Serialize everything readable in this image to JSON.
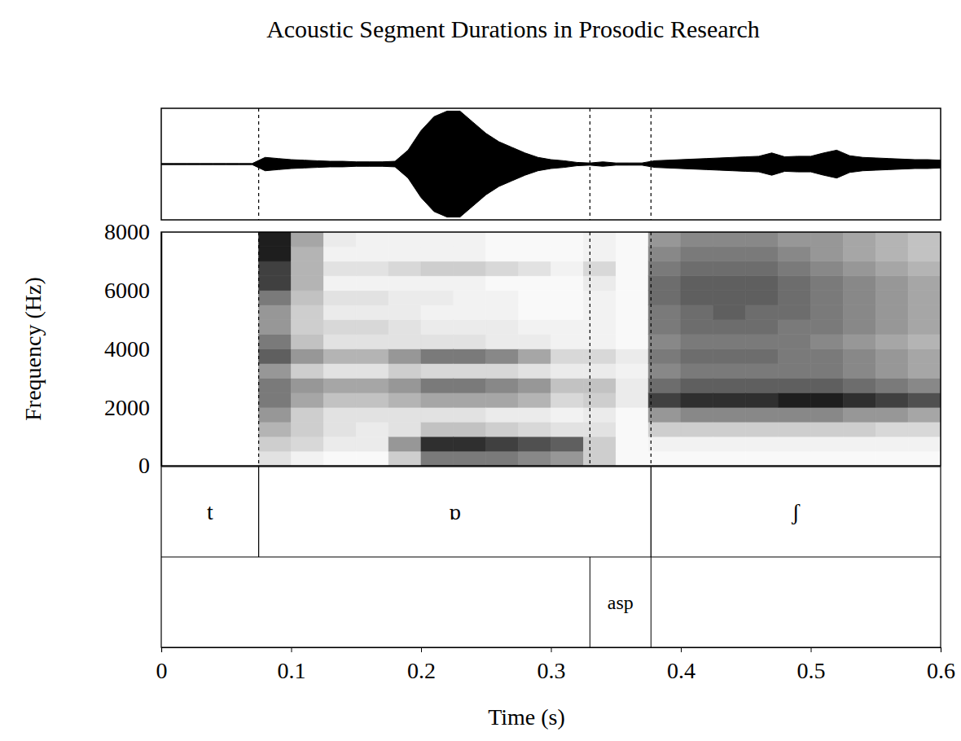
{
  "title": "Acoustic Segment Durations in Prosodic Research",
  "chart_data": [
    {
      "type": "area",
      "xlim": [
        0,
        0.6
      ],
      "ylim": [
        -1,
        1
      ],
      "tick_labels": false,
      "color": "#000000",
      "x": [
        0,
        0.01,
        0.02,
        0.03,
        0.04,
        0.05,
        0.06,
        0.07,
        0.08,
        0.09,
        0.1,
        0.11,
        0.12,
        0.13,
        0.14,
        0.15,
        0.16,
        0.17,
        0.18,
        0.19,
        0.2,
        0.21,
        0.22,
        0.23,
        0.24,
        0.25,
        0.26,
        0.27,
        0.28,
        0.29,
        0.3,
        0.31,
        0.32,
        0.33,
        0.34,
        0.35,
        0.36,
        0.37,
        0.38,
        0.39,
        0.4,
        0.41,
        0.42,
        0.43,
        0.44,
        0.45,
        0.46,
        0.47,
        0.48,
        0.49,
        0.5,
        0.51,
        0.52,
        0.53,
        0.54,
        0.55,
        0.56,
        0.57,
        0.58,
        0.59,
        0.6
      ],
      "values": [
        0.01,
        0.01,
        0.01,
        0.01,
        0.01,
        0.01,
        0.01,
        0.01,
        0.12,
        0.1,
        0.08,
        0.07,
        0.06,
        0.05,
        0.05,
        0.04,
        0.04,
        0.04,
        0.05,
        0.25,
        0.6,
        0.85,
        0.95,
        0.95,
        0.75,
        0.55,
        0.4,
        0.3,
        0.2,
        0.12,
        0.08,
        0.06,
        0.03,
        0.02,
        0.04,
        0.02,
        0.02,
        0.02,
        0.06,
        0.07,
        0.08,
        0.09,
        0.1,
        0.11,
        0.12,
        0.13,
        0.14,
        0.2,
        0.13,
        0.14,
        0.14,
        0.2,
        0.25,
        0.15,
        0.12,
        0.11,
        0.1,
        0.09,
        0.08,
        0.08,
        0.07
      ]
    },
    {
      "type": "heatmap",
      "ylabel": "Frequency (Hz)",
      "xlim": [
        0,
        0.6
      ],
      "ylim": [
        0,
        8000
      ],
      "yticks": [
        0,
        2000,
        4000,
        6000,
        8000
      ],
      "zlim": [
        0,
        1
      ],
      "x_bins": [
        0,
        0.025,
        0.05,
        0.075,
        0.1,
        0.125,
        0.15,
        0.175,
        0.2,
        0.225,
        0.25,
        0.275,
        0.3,
        0.325,
        0.35,
        0.375,
        0.4,
        0.425,
        0.45,
        0.475,
        0.5,
        0.525,
        0.55,
        0.575,
        0.6
      ],
      "y_bins": [
        0,
        500,
        1000,
        1500,
        2000,
        2500,
        3000,
        3500,
        4000,
        4500,
        5000,
        5500,
        6000,
        6500,
        7000,
        7500,
        8000
      ],
      "z": [
        [
          0,
          0,
          0,
          0,
          0,
          0,
          0,
          0,
          0,
          0,
          0,
          0,
          0,
          0,
          0,
          0
        ],
        [
          0,
          0,
          0,
          0,
          0,
          0,
          0,
          0,
          0,
          0,
          0,
          0,
          0,
          0,
          0,
          0
        ],
        [
          0,
          0,
          0,
          0,
          0,
          0,
          0,
          0,
          0,
          0,
          0,
          0,
          0,
          0,
          0,
          0
        ],
        [
          0.2,
          0.3,
          0.4,
          0.5,
          0.6,
          0.6,
          0.5,
          0.7,
          0.6,
          0.5,
          0.5,
          0.6,
          0.8,
          0.8,
          0.9,
          0.9
        ],
        [
          0.1,
          0.25,
          0.3,
          0.3,
          0.45,
          0.5,
          0.3,
          0.5,
          0.35,
          0.3,
          0.3,
          0.35,
          0.4,
          0.4,
          0.4,
          0.45
        ],
        [
          0.05,
          0.15,
          0.2,
          0.2,
          0.35,
          0.45,
          0.2,
          0.4,
          0.2,
          0.25,
          0.15,
          0.2,
          0.1,
          0.2,
          0.1,
          0.15
        ],
        [
          0.05,
          0.15,
          0.15,
          0.2,
          0.35,
          0.45,
          0.2,
          0.4,
          0.2,
          0.25,
          0.15,
          0.2,
          0.1,
          0.2,
          0.1,
          0.1
        ],
        [
          0.3,
          0.5,
          0.2,
          0.2,
          0.4,
          0.5,
          0.3,
          0.5,
          0.2,
          0.2,
          0.15,
          0.15,
          0.1,
          0.25,
          0.1,
          0.1
        ],
        [
          0.6,
          0.85,
          0.35,
          0.2,
          0.45,
          0.6,
          0.25,
          0.6,
          0.2,
          0.15,
          0.1,
          0.15,
          0.1,
          0.3,
          0.1,
          0.1
        ],
        [
          0.6,
          0.85,
          0.35,
          0.2,
          0.45,
          0.6,
          0.25,
          0.6,
          0.2,
          0.15,
          0.1,
          0.1,
          0.1,
          0.3,
          0.1,
          0.1
        ],
        [
          0.6,
          0.8,
          0.3,
          0.15,
          0.45,
          0.55,
          0.25,
          0.55,
          0.15,
          0.15,
          0.1,
          0.1,
          0.05,
          0.25,
          0.05,
          0.05
        ],
        [
          0.55,
          0.75,
          0.25,
          0.15,
          0.4,
          0.5,
          0.2,
          0.45,
          0.15,
          0.1,
          0.05,
          0.05,
          0.05,
          0.2,
          0.05,
          0.05
        ],
        [
          0.5,
          0.7,
          0.2,
          0.1,
          0.25,
          0.35,
          0.15,
          0.25,
          0.1,
          0.1,
          0.05,
          0.05,
          0.05,
          0.1,
          0.05,
          0.05
        ],
        [
          0.3,
          0.3,
          0.2,
          0.15,
          0.3,
          0.35,
          0.15,
          0.25,
          0.1,
          0.1,
          0.1,
          0.1,
          0.15,
          0.25,
          0.1,
          0.1
        ],
        [
          0.05,
          0.05,
          0.05,
          0.05,
          0.15,
          0.15,
          0.1,
          0.15,
          0.05,
          0.05,
          0.05,
          0.05,
          0.05,
          0.05,
          0.05,
          0.05
        ],
        [
          0.05,
          0.1,
          0.3,
          0.5,
          0.8,
          0.65,
          0.55,
          0.6,
          0.55,
          0.6,
          0.6,
          0.65,
          0.65,
          0.6,
          0.55,
          0.5
        ],
        [
          0.05,
          0.1,
          0.3,
          0.55,
          0.85,
          0.7,
          0.6,
          0.65,
          0.6,
          0.65,
          0.65,
          0.7,
          0.7,
          0.65,
          0.6,
          0.55
        ],
        [
          0.05,
          0.1,
          0.3,
          0.55,
          0.85,
          0.7,
          0.6,
          0.65,
          0.6,
          0.65,
          0.7,
          0.7,
          0.7,
          0.65,
          0.6,
          0.55
        ],
        [
          0.05,
          0.1,
          0.3,
          0.55,
          0.85,
          0.7,
          0.6,
          0.65,
          0.6,
          0.65,
          0.65,
          0.7,
          0.7,
          0.65,
          0.6,
          0.55
        ],
        [
          0.05,
          0.1,
          0.3,
          0.55,
          0.9,
          0.7,
          0.6,
          0.6,
          0.6,
          0.6,
          0.65,
          0.65,
          0.65,
          0.6,
          0.55,
          0.5
        ],
        [
          0.05,
          0.1,
          0.3,
          0.55,
          0.9,
          0.7,
          0.6,
          0.6,
          0.55,
          0.6,
          0.6,
          0.6,
          0.6,
          0.55,
          0.5,
          0.5
        ],
        [
          0.05,
          0.1,
          0.3,
          0.5,
          0.85,
          0.65,
          0.55,
          0.55,
          0.5,
          0.55,
          0.55,
          0.55,
          0.55,
          0.5,
          0.45,
          0.45
        ],
        [
          0.05,
          0.1,
          0.25,
          0.5,
          0.8,
          0.6,
          0.5,
          0.5,
          0.45,
          0.5,
          0.5,
          0.5,
          0.5,
          0.45,
          0.4,
          0.4
        ],
        [
          0.05,
          0.1,
          0.25,
          0.45,
          0.75,
          0.55,
          0.45,
          0.45,
          0.4,
          0.45,
          0.45,
          0.45,
          0.45,
          0.4,
          0.35,
          0.35
        ]
      ]
    },
    {
      "type": "segments",
      "xlabel": "Time (s)",
      "xlim": [
        0,
        0.6
      ],
      "xticks": [
        0,
        0.1,
        0.2,
        0.3,
        0.4,
        0.5,
        0.6
      ],
      "tiers": [
        {
          "segments": [
            {
              "label": "t",
              "start": 0,
              "end": 0.075
            },
            {
              "label": "ɒ",
              "start": 0.075,
              "end": 0.377
            },
            {
              "label": "ʃ",
              "start": 0.377,
              "end": 0.6
            }
          ]
        },
        {
          "segments": [
            {
              "label": "asp",
              "start": 0.33,
              "end": 0.377
            }
          ]
        }
      ]
    }
  ]
}
